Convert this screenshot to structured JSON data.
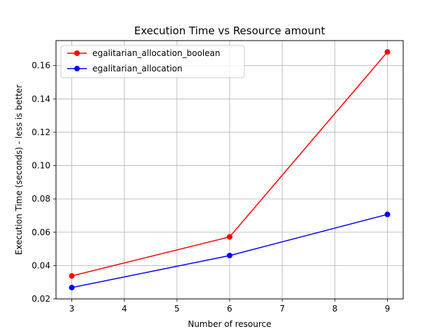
{
  "chart_data": {
    "type": "line",
    "title": "Execution Time vs Resource amount",
    "xlabel": "Number of resource",
    "ylabel": "Execution Time (seconds) - less is better",
    "xlim": [
      2.7,
      9.3
    ],
    "ylim": [
      0.02,
      0.175
    ],
    "xticks": [
      3,
      4,
      5,
      6,
      7,
      8,
      9
    ],
    "xtick_labels": [
      "3",
      "4",
      "5",
      "6",
      "7",
      "8",
      "9"
    ],
    "yticks": [
      0.02,
      0.04,
      0.06,
      0.08,
      0.1,
      0.12,
      0.14,
      0.16
    ],
    "ytick_labels": [
      "0.02",
      "0.04",
      "0.06",
      "0.08",
      "0.10",
      "0.12",
      "0.14",
      "0.16"
    ],
    "grid": true,
    "legend_position": "top-left",
    "x": [
      3,
      6,
      9
    ],
    "series": [
      {
        "name": "egalitarian_allocation_boolean",
        "color": "#ff0000",
        "marker": "circle",
        "values": [
          0.0338,
          0.0572,
          0.1682
        ]
      },
      {
        "name": "egalitarian_allocation",
        "color": "#0000ff",
        "marker": "circle",
        "values": [
          0.0268,
          0.046,
          0.0707
        ]
      }
    ]
  }
}
